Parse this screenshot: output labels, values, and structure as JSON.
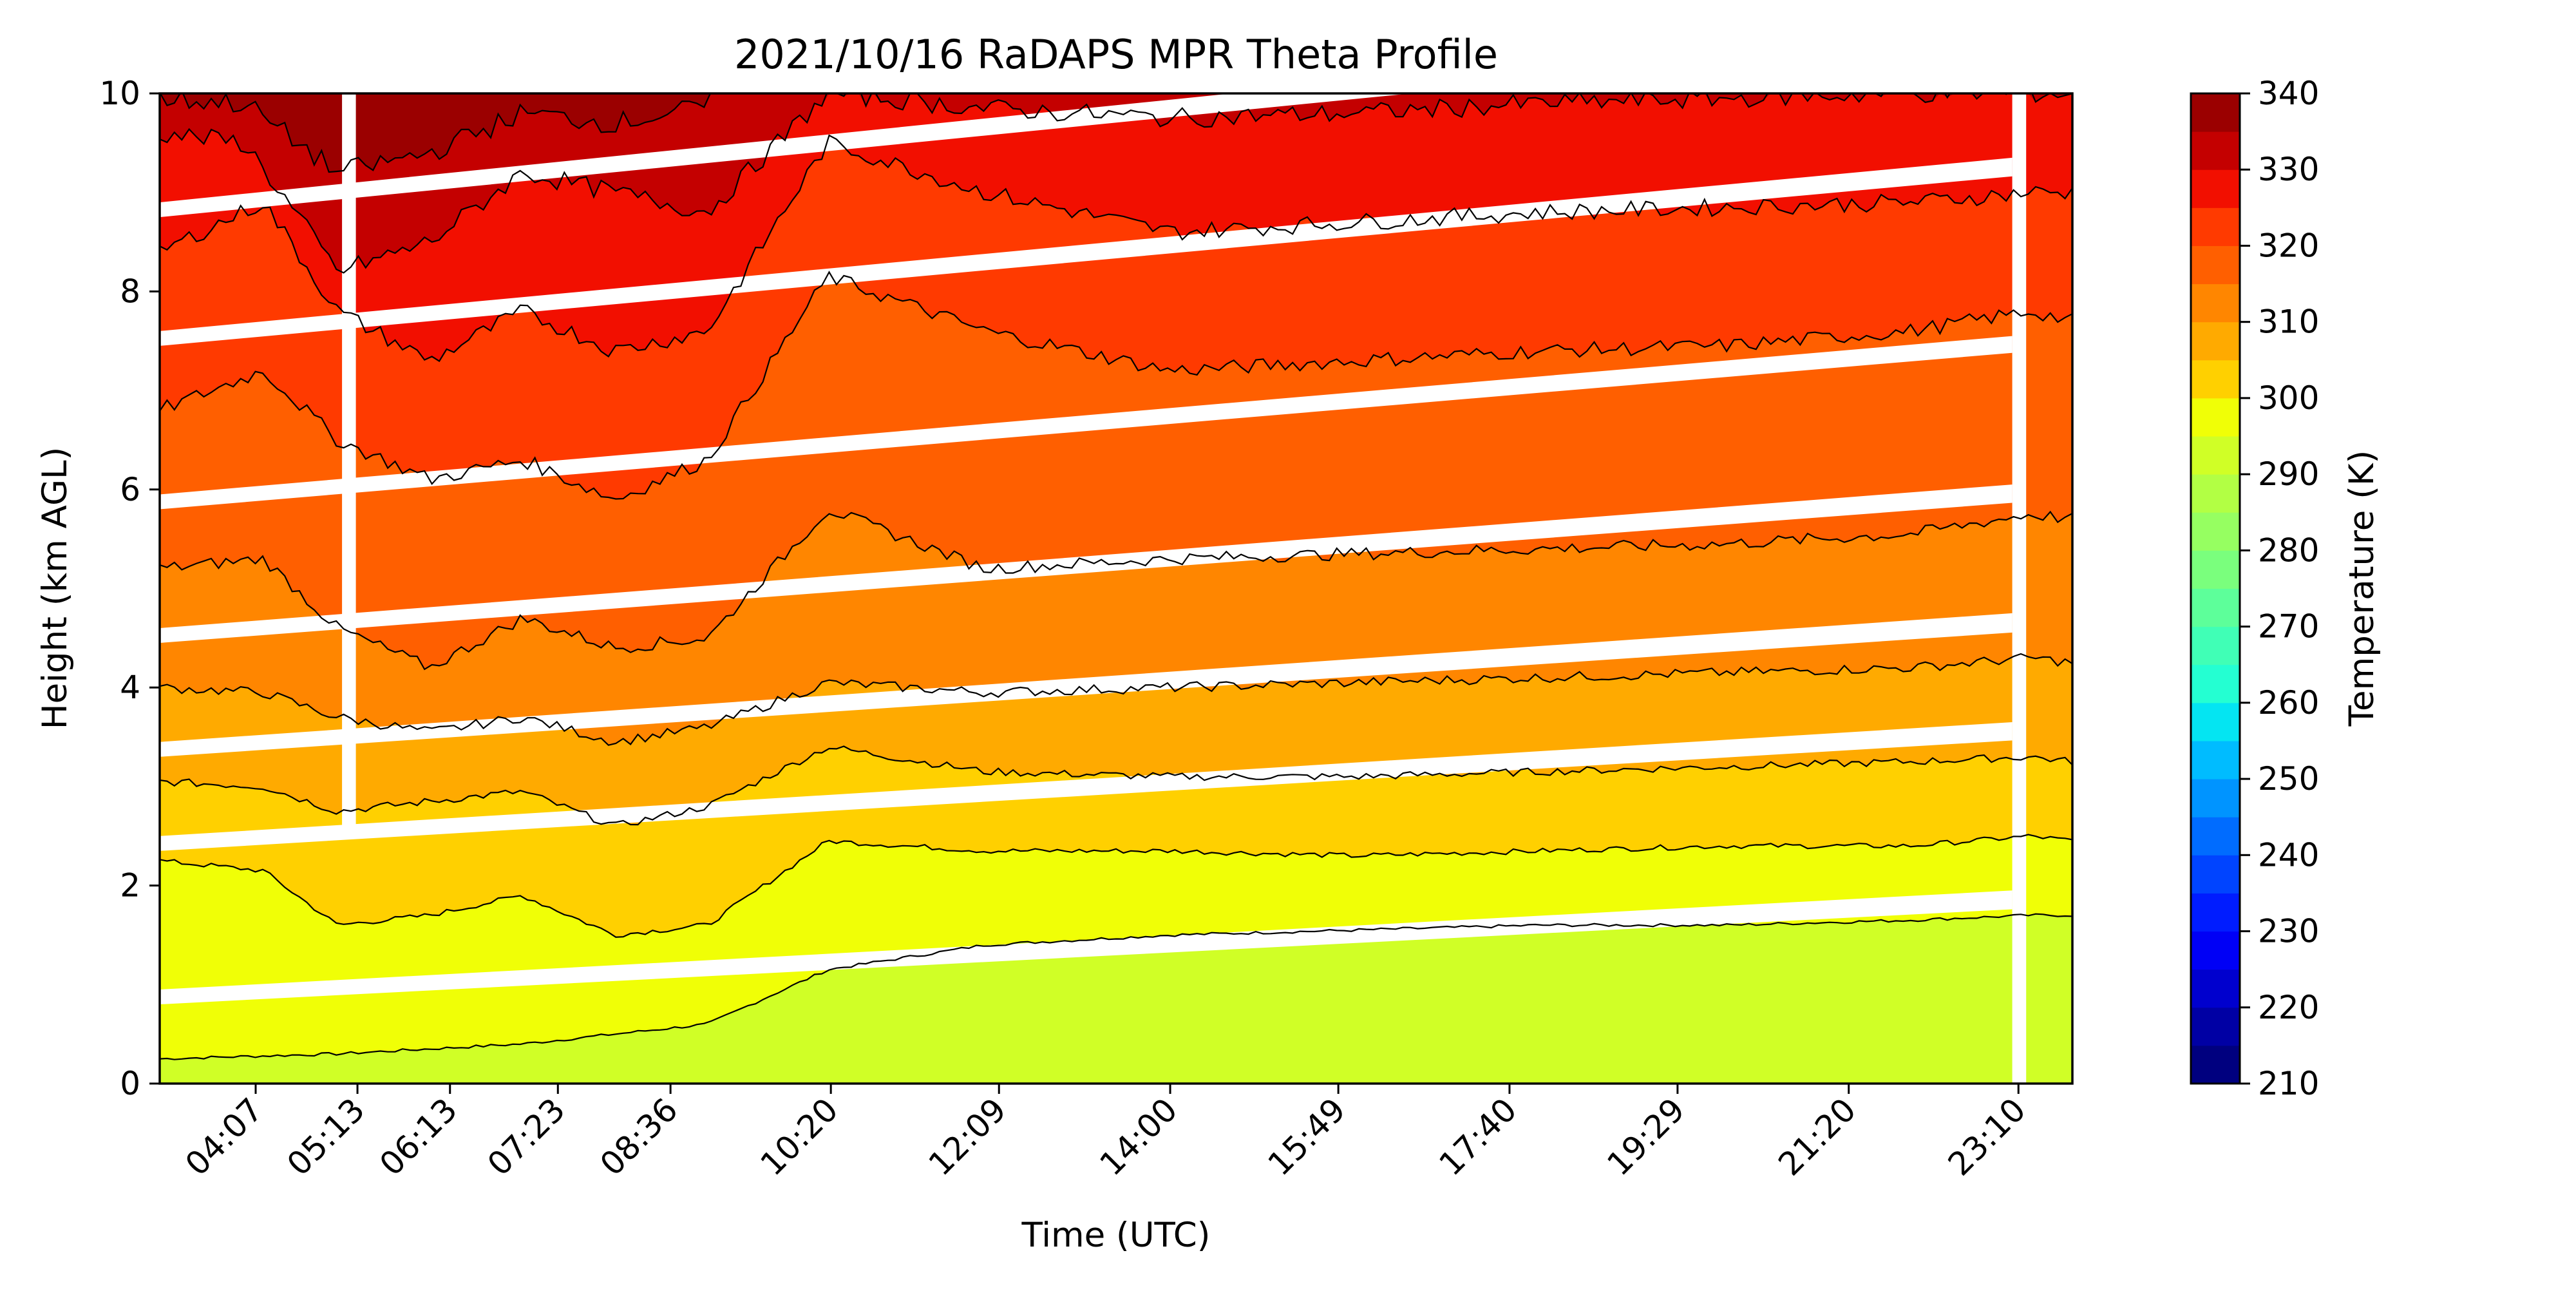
{
  "chart_data": {
    "type": "heatmap",
    "title": "2021/10/16 RaDAPS MPR Theta Profile",
    "xlabel": "Time (UTC)",
    "ylabel": "Height (km AGL)",
    "colorbar_label": "Temperature (K)",
    "x_range_hours": [
      3.08,
      23.75
    ],
    "ylim": [
      0,
      10
    ],
    "x_ticks": [
      {
        "label": "04:07",
        "hours": 4.117
      },
      {
        "label": "05:13",
        "hours": 5.217
      },
      {
        "label": "06:13",
        "hours": 6.217
      },
      {
        "label": "07:23",
        "hours": 7.383
      },
      {
        "label": "08:36",
        "hours": 8.6
      },
      {
        "label": "10:20",
        "hours": 10.333
      },
      {
        "label": "12:09",
        "hours": 12.15
      },
      {
        "label": "14:00",
        "hours": 14.0
      },
      {
        "label": "15:49",
        "hours": 15.817
      },
      {
        "label": "17:40",
        "hours": 17.667
      },
      {
        "label": "19:29",
        "hours": 19.483
      },
      {
        "label": "21:20",
        "hours": 21.333
      },
      {
        "label": "23:10",
        "hours": 23.167
      }
    ],
    "y_ticks": [
      0,
      2,
      4,
      6,
      8,
      10
    ],
    "colorbar": {
      "min": 210,
      "max": 340,
      "step": 5,
      "tick_values": [
        210,
        220,
        230,
        240,
        250,
        260,
        270,
        280,
        290,
        300,
        310,
        320,
        330,
        340
      ],
      "colormap": "jet",
      "colors": [
        "#00007f",
        "#0000a4",
        "#0000ce",
        "#0000f6",
        "#001cff",
        "#0044ff",
        "#006cff",
        "#0094ff",
        "#00bcff",
        "#04e5f2",
        "#24ffd2",
        "#40ffb6",
        "#5dff9a",
        "#7aff7d",
        "#96ff61",
        "#b2ff44",
        "#d0ff26",
        "#f0ff06",
        "#ffd000",
        "#ffaa00",
        "#ff8600",
        "#ff5f00",
        "#ff3a00",
        "#f20f00",
        "#c40000",
        "#9b0000",
        "#7f0000"
      ]
    },
    "contour_levels_K": [
      295,
      300,
      305,
      310,
      315,
      320,
      325,
      330,
      335
    ],
    "isentrope_heights_km": [
      {
        "level_K": 295,
        "times_hours": [
          3.08,
          5.0,
          7.0,
          9.0,
          10.3,
          12.0,
          14.0,
          16.0,
          18.0,
          20.0,
          22.0,
          23.3,
          23.75
        ],
        "heights_km": [
          0.25,
          0.3,
          0.4,
          0.6,
          1.15,
          1.4,
          1.5,
          1.55,
          1.6,
          1.6,
          1.65,
          1.7,
          1.7
        ]
      },
      {
        "level_K": 300,
        "times_hours": [
          3.08,
          4.2,
          5.0,
          6.0,
          7.0,
          8.0,
          9.0,
          10.3,
          12.0,
          14.0,
          16.0,
          18.0,
          20.0,
          22.0,
          23.3,
          23.75
        ],
        "heights_km": [
          2.25,
          2.15,
          1.6,
          1.7,
          1.9,
          1.5,
          1.6,
          2.45,
          2.35,
          2.35,
          2.3,
          2.35,
          2.4,
          2.4,
          2.5,
          2.45
        ]
      },
      {
        "level_K": 305,
        "times_hours": [
          3.08,
          4.2,
          5.0,
          6.0,
          7.0,
          8.0,
          9.0,
          10.3,
          12.0,
          14.0,
          16.0,
          18.0,
          20.0,
          22.0,
          23.3,
          23.75
        ],
        "heights_km": [
          3.05,
          3.0,
          2.75,
          2.85,
          2.95,
          2.6,
          2.8,
          3.4,
          3.15,
          3.1,
          3.1,
          3.15,
          3.2,
          3.25,
          3.3,
          3.25
        ]
      },
      {
        "level_K": 310,
        "times_hours": [
          3.08,
          4.2,
          5.0,
          6.0,
          7.0,
          8.0,
          9.0,
          10.3,
          12.0,
          14.0,
          16.0,
          18.0,
          20.0,
          22.0,
          23.3,
          23.75
        ],
        "heights_km": [
          4.0,
          3.95,
          3.7,
          3.55,
          3.7,
          3.45,
          3.6,
          4.05,
          3.95,
          4.0,
          4.05,
          4.1,
          4.15,
          4.2,
          4.3,
          4.25
        ]
      },
      {
        "level_K": 315,
        "times_hours": [
          3.08,
          4.2,
          5.0,
          6.0,
          7.0,
          8.0,
          9.0,
          10.3,
          12.0,
          14.0,
          16.0,
          18.0,
          20.0,
          22.0,
          23.3,
          23.75
        ],
        "heights_km": [
          5.2,
          5.3,
          4.6,
          4.2,
          4.7,
          4.4,
          4.5,
          5.8,
          5.2,
          5.3,
          5.35,
          5.4,
          5.45,
          5.55,
          5.75,
          5.7
        ]
      },
      {
        "level_K": 320,
        "times_hours": [
          3.08,
          4.2,
          5.0,
          6.0,
          7.0,
          8.0,
          9.0,
          10.3,
          12.0,
          14.0,
          16.0,
          18.0,
          20.0,
          22.0,
          23.3,
          23.75
        ],
        "heights_km": [
          6.8,
          7.2,
          6.5,
          6.1,
          6.3,
          5.9,
          6.3,
          8.15,
          7.6,
          7.2,
          7.3,
          7.4,
          7.45,
          7.6,
          7.8,
          7.7
        ]
      },
      {
        "level_K": 325,
        "times_hours": [
          3.08,
          4.2,
          5.0,
          6.0,
          7.0,
          8.0,
          9.0,
          10.3,
          12.0,
          14.0,
          16.0,
          18.0,
          20.0,
          22.0,
          23.3,
          23.75
        ],
        "heights_km": [
          8.4,
          8.9,
          7.8,
          7.3,
          7.8,
          7.4,
          7.6,
          9.5,
          9.0,
          8.6,
          8.7,
          8.8,
          8.85,
          8.9,
          9.0,
          9.0
        ]
      },
      {
        "level_K": 330,
        "times_hours": [
          3.08,
          4.0,
          5.0,
          6.0,
          7.0,
          8.0,
          9.0,
          10.3,
          12.0,
          14.0,
          16.0,
          18.0,
          20.0,
          22.0,
          23.3,
          23.75
        ],
        "heights_km": [
          9.6,
          9.5,
          8.2,
          8.5,
          9.2,
          9.0,
          8.8,
          10.0,
          9.85,
          9.75,
          9.8,
          9.9,
          9.95,
          10.0,
          10.0,
          10.0
        ]
      },
      {
        "level_K": 335,
        "times_hours": [
          3.08,
          4.0,
          5.0,
          6.0,
          7.0,
          8.0,
          8.9,
          9.2
        ],
        "heights_km": [
          9.95,
          9.9,
          9.2,
          9.4,
          9.8,
          9.7,
          9.85,
          10.0
        ]
      }
    ],
    "plot_colors": {
      "gap_missing_data": "#ffffff",
      "contour_line": "#000000"
    }
  }
}
